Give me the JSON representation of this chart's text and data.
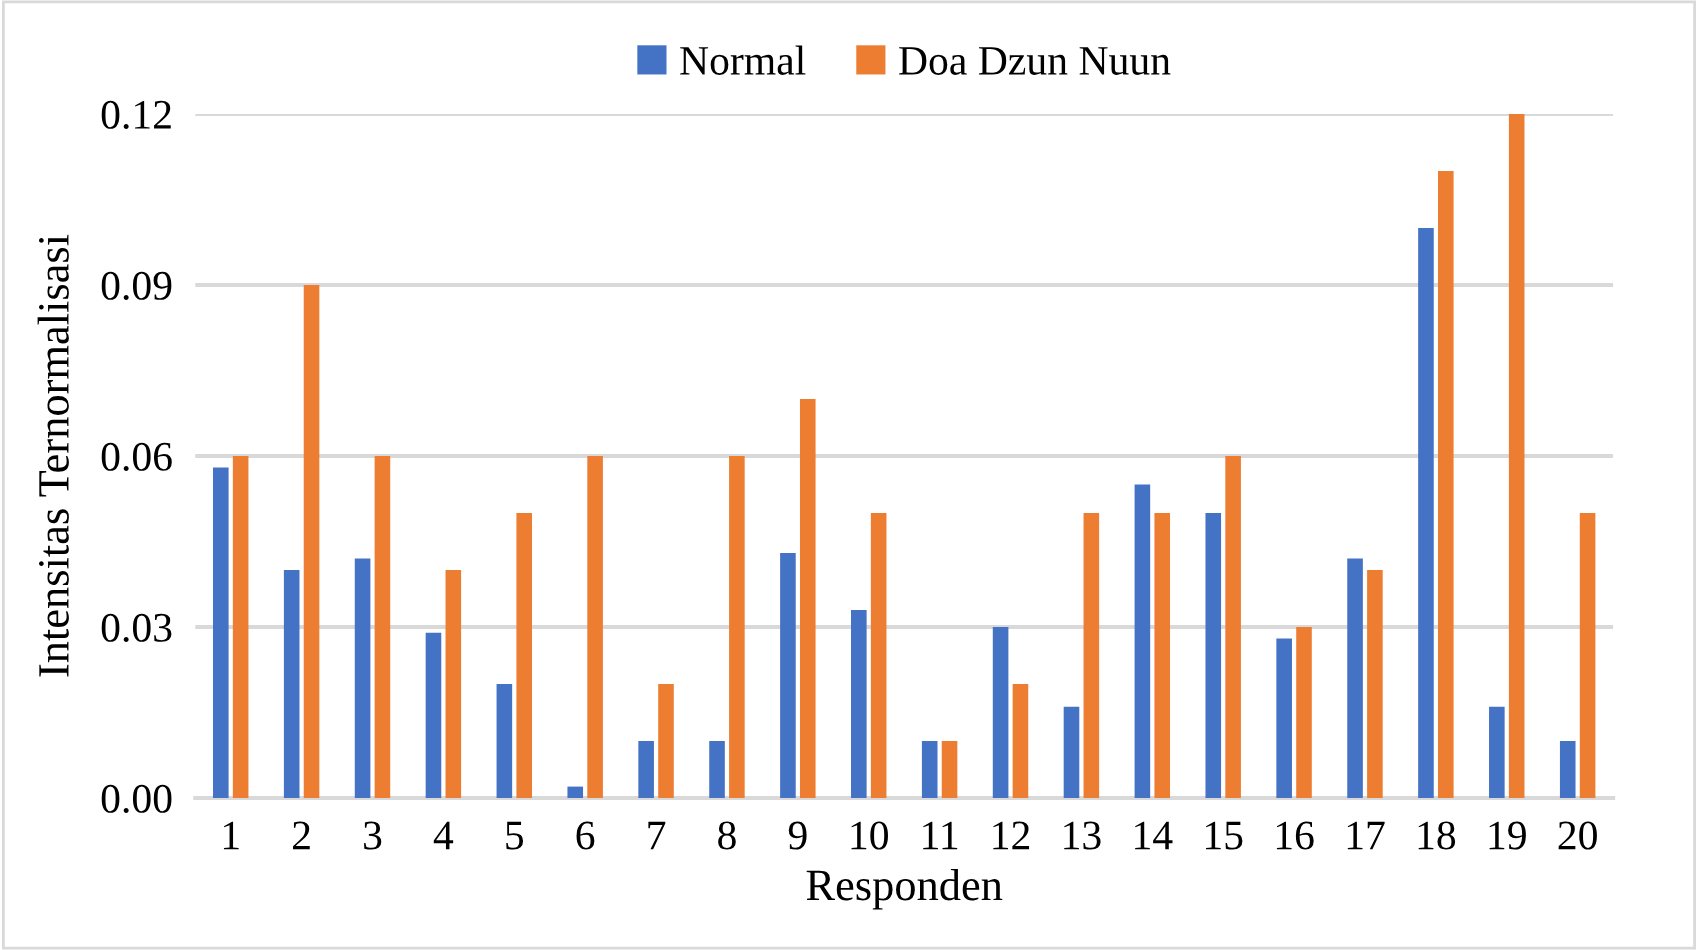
{
  "chart_data": {
    "type": "bar",
    "xlabel": "Responden",
    "ylabel": "Intensitas Ternormalisasi",
    "categories": [
      "1",
      "2",
      "3",
      "4",
      "5",
      "6",
      "7",
      "8",
      "9",
      "10",
      "11",
      "12",
      "13",
      "14",
      "15",
      "16",
      "17",
      "18",
      "19",
      "20"
    ],
    "series": [
      {
        "name": "Normal",
        "color": "#4472c4",
        "values": [
          0.058,
          0.04,
          0.042,
          0.029,
          0.02,
          0.002,
          0.01,
          0.01,
          0.043,
          0.033,
          0.01,
          0.03,
          0.016,
          0.055,
          0.05,
          0.028,
          0.042,
          0.1,
          0.016,
          0.01
        ]
      },
      {
        "name": "Doa Dzun Nuun",
        "color": "#ed7d31",
        "values": [
          0.06,
          0.09,
          0.06,
          0.04,
          0.05,
          0.06,
          0.02,
          0.06,
          0.07,
          0.05,
          0.01,
          0.02,
          0.05,
          0.05,
          0.06,
          0.03,
          0.04,
          0.11,
          0.12,
          0.05
        ]
      }
    ],
    "ylim": [
      0,
      0.12
    ],
    "yticks": [
      {
        "value": 0,
        "label": "0.00"
      },
      {
        "value": 0.03,
        "label": "0.03"
      },
      {
        "value": 0.06,
        "label": "0.06"
      },
      {
        "value": 0.09,
        "label": "0.09"
      },
      {
        "value": 0.12,
        "label": "0.12"
      }
    ],
    "grid": "y",
    "legend": "top"
  }
}
